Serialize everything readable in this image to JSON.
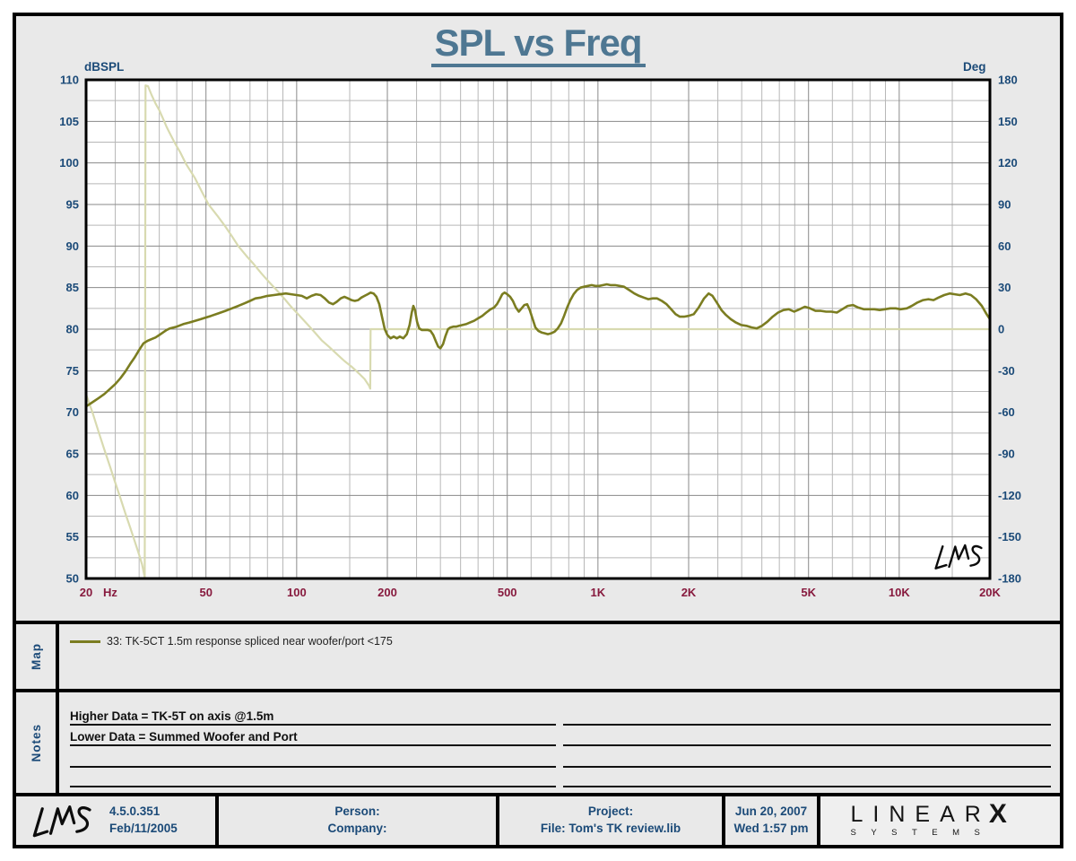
{
  "header": {
    "title": "SPL vs Freq"
  },
  "map": {
    "label": "Map",
    "legend": [
      {
        "swatch_color": "#7b7d21",
        "text": "33: TK-5CT 1.5m response spliced near woofer/port <175"
      }
    ]
  },
  "notes": {
    "label": "Notes",
    "lines": [
      "Higher Data = TK-5T on axis @1.5m",
      "Lower  Data = Summed Woofer and Port",
      "",
      ""
    ]
  },
  "footer": {
    "logo_text": "LMS",
    "version": "4.5.0.351",
    "version_date": "Feb/11/2005",
    "person_label": "Person:",
    "company_label": "Company:",
    "project_label": "Project:",
    "file_label": "File: Tom's TK review.lib",
    "date": "Jun 20, 2007",
    "time": "Wed  1:57 pm",
    "brand": {
      "line1": "LINEAR",
      "x": "X",
      "line2": "SYSTEMS"
    }
  },
  "chart_data": {
    "type": "line",
    "title": "SPL vs Freq",
    "grid": true,
    "annotations": [
      {
        "text": "LMS",
        "type": "signature",
        "position": "bottom-right-of-plot"
      }
    ],
    "x_axis": {
      "scale": "log",
      "min": 20,
      "max": 20000,
      "unit": "Hz",
      "ticks": [
        {
          "f": 20,
          "label": "20"
        },
        {
          "f": 50,
          "label": "50"
        },
        {
          "f": 100,
          "label": "100"
        },
        {
          "f": 200,
          "label": "200"
        },
        {
          "f": 500,
          "label": "500"
        },
        {
          "f": 1000,
          "label": "1K"
        },
        {
          "f": 2000,
          "label": "2K"
        },
        {
          "f": 5000,
          "label": "5K"
        },
        {
          "f": 10000,
          "label": "10K"
        },
        {
          "f": 20000,
          "label": "20K"
        }
      ],
      "minor_multipliers": [
        1.5,
        2,
        2.5,
        3,
        3.5,
        4,
        4.5,
        5,
        6,
        7,
        8,
        9
      ],
      "tick_color": "#871a3e"
    },
    "y_left": {
      "label": "dBSPL",
      "min": 50,
      "max": 110,
      "major_step": 5,
      "minor_step": 2.5,
      "tick_color": "#1b4a78"
    },
    "y_right": {
      "label": "Deg",
      "min": -180,
      "max": 180,
      "major_step": 30,
      "minor_step": 15,
      "tick_color": "#1b4a78"
    },
    "colors": {
      "grid_major": "#8a8a8a",
      "grid_minor": "#b7b7b7",
      "plot_bg": "#ffffff",
      "frame": "#000000"
    },
    "series": [
      {
        "name": "33: TK-5CT 1.5m response spliced near woofer/port <175",
        "axis": "left",
        "color": "#7b7d21",
        "width": 2.6,
        "points": [
          [
            20,
            70.7
          ],
          [
            21,
            71.2
          ],
          [
            22,
            71.7
          ],
          [
            23,
            72.2
          ],
          [
            24,
            72.8
          ],
          [
            25,
            73.4
          ],
          [
            26,
            74.1
          ],
          [
            27,
            74.9
          ],
          [
            28,
            75.8
          ],
          [
            29,
            76.6
          ],
          [
            30,
            77.5
          ],
          [
            31,
            78.3
          ],
          [
            32,
            78.6
          ],
          [
            33,
            78.8
          ],
          [
            34,
            79
          ],
          [
            35,
            79.3
          ],
          [
            36,
            79.6
          ],
          [
            37,
            79.9
          ],
          [
            38,
            80.1
          ],
          [
            40,
            80.3
          ],
          [
            42,
            80.6
          ],
          [
            44,
            80.8
          ],
          [
            46,
            81
          ],
          [
            48,
            81.2
          ],
          [
            50,
            81.4
          ],
          [
            52,
            81.6
          ],
          [
            55,
            81.9
          ],
          [
            58,
            82.2
          ],
          [
            61,
            82.5
          ],
          [
            64,
            82.8
          ],
          [
            67,
            83.1
          ],
          [
            70,
            83.4
          ],
          [
            73,
            83.7
          ],
          [
            76,
            83.8
          ],
          [
            80,
            84
          ],
          [
            84,
            84.1
          ],
          [
            88,
            84.2
          ],
          [
            92,
            84.3
          ],
          [
            96,
            84.2
          ],
          [
            100,
            84.1
          ],
          [
            104,
            84
          ],
          [
            108,
            83.7
          ],
          [
            112,
            84
          ],
          [
            116,
            84.2
          ],
          [
            120,
            84.1
          ],
          [
            124,
            83.7
          ],
          [
            128,
            83.2
          ],
          [
            132,
            83
          ],
          [
            136,
            83.3
          ],
          [
            140,
            83.7
          ],
          [
            144,
            83.9
          ],
          [
            148,
            83.7
          ],
          [
            152,
            83.5
          ],
          [
            156,
            83.4
          ],
          [
            160,
            83.5
          ],
          [
            164,
            83.8
          ],
          [
            168,
            84
          ],
          [
            172,
            84.2
          ],
          [
            176,
            84.4
          ],
          [
            180,
            84.3
          ],
          [
            184,
            83.9
          ],
          [
            188,
            83
          ],
          [
            192,
            81.5
          ],
          [
            196,
            80
          ],
          [
            200,
            79.3
          ],
          [
            205,
            78.9
          ],
          [
            210,
            79.1
          ],
          [
            215,
            78.9
          ],
          [
            220,
            79.1
          ],
          [
            226,
            78.9
          ],
          [
            232,
            79.4
          ],
          [
            237,
            80.5
          ],
          [
            241,
            82
          ],
          [
            244,
            82.8
          ],
          [
            247,
            82.3
          ],
          [
            251,
            80.9
          ],
          [
            255,
            80.1
          ],
          [
            260,
            79.9
          ],
          [
            266,
            79.9
          ],
          [
            272,
            79.9
          ],
          [
            278,
            79.8
          ],
          [
            284,
            79.3
          ],
          [
            290,
            78.5
          ],
          [
            295,
            77.9
          ],
          [
            300,
            77.7
          ],
          [
            306,
            78.2
          ],
          [
            312,
            79.2
          ],
          [
            318,
            80
          ],
          [
            324,
            80.2
          ],
          [
            331,
            80.3
          ],
          [
            338,
            80.3
          ],
          [
            346,
            80.4
          ],
          [
            355,
            80.5
          ],
          [
            365,
            80.6
          ],
          [
            376,
            80.8
          ],
          [
            388,
            81
          ],
          [
            400,
            81.3
          ],
          [
            413,
            81.6
          ],
          [
            426,
            82
          ],
          [
            440,
            82.4
          ],
          [
            452,
            82.6
          ],
          [
            462,
            83
          ],
          [
            472,
            83.6
          ],
          [
            481,
            84.2
          ],
          [
            490,
            84.4
          ],
          [
            500,
            84.2
          ],
          [
            511,
            83.9
          ],
          [
            522,
            83.4
          ],
          [
            534,
            82.6
          ],
          [
            546,
            82.1
          ],
          [
            558,
            82.5
          ],
          [
            570,
            82.9
          ],
          [
            582,
            83
          ],
          [
            594,
            82.3
          ],
          [
            606,
            81.3
          ],
          [
            620,
            80.2
          ],
          [
            634,
            79.8
          ],
          [
            650,
            79.6
          ],
          [
            666,
            79.5
          ],
          [
            682,
            79.4
          ],
          [
            700,
            79.5
          ],
          [
            718,
            79.7
          ],
          [
            736,
            80.1
          ],
          [
            754,
            80.7
          ],
          [
            772,
            81.6
          ],
          [
            790,
            82.6
          ],
          [
            810,
            83.5
          ],
          [
            830,
            84.2
          ],
          [
            852,
            84.7
          ],
          [
            875,
            85
          ],
          [
            900,
            85.1
          ],
          [
            926,
            85.2
          ],
          [
            953,
            85.3
          ],
          [
            980,
            85.2
          ],
          [
            1010,
            85.2
          ],
          [
            1040,
            85.3
          ],
          [
            1070,
            85.4
          ],
          [
            1100,
            85.3
          ],
          [
            1140,
            85.3
          ],
          [
            1180,
            85.2
          ],
          [
            1220,
            85.1
          ],
          [
            1270,
            84.7
          ],
          [
            1320,
            84.3
          ],
          [
            1370,
            84
          ],
          [
            1420,
            83.8
          ],
          [
            1470,
            83.6
          ],
          [
            1520,
            83.7
          ],
          [
            1570,
            83.7
          ],
          [
            1630,
            83.4
          ],
          [
            1690,
            83
          ],
          [
            1750,
            82.4
          ],
          [
            1810,
            81.8
          ],
          [
            1870,
            81.5
          ],
          [
            1930,
            81.5
          ],
          [
            2000,
            81.6
          ],
          [
            2080,
            81.8
          ],
          [
            2160,
            82.6
          ],
          [
            2250,
            83.7
          ],
          [
            2330,
            84.3
          ],
          [
            2400,
            84
          ],
          [
            2480,
            83.2
          ],
          [
            2570,
            82.3
          ],
          [
            2660,
            81.7
          ],
          [
            2760,
            81.2
          ],
          [
            2870,
            80.8
          ],
          [
            2990,
            80.5
          ],
          [
            3110,
            80.4
          ],
          [
            3240,
            80.2
          ],
          [
            3370,
            80.1
          ],
          [
            3500,
            80.4
          ],
          [
            3650,
            80.9
          ],
          [
            3800,
            81.5
          ],
          [
            3960,
            82
          ],
          [
            4130,
            82.3
          ],
          [
            4300,
            82.4
          ],
          [
            4480,
            82.1
          ],
          [
            4670,
            82.4
          ],
          [
            4860,
            82.7
          ],
          [
            5060,
            82.5
          ],
          [
            5270,
            82.2
          ],
          [
            5490,
            82.2
          ],
          [
            5720,
            82.1
          ],
          [
            5960,
            82.1
          ],
          [
            6210,
            82
          ],
          [
            6470,
            82.4
          ],
          [
            6740,
            82.8
          ],
          [
            7020,
            82.9
          ],
          [
            7310,
            82.6
          ],
          [
            7620,
            82.4
          ],
          [
            7940,
            82.4
          ],
          [
            8270,
            82.4
          ],
          [
            8610,
            82.3
          ],
          [
            8970,
            82.4
          ],
          [
            9340,
            82.5
          ],
          [
            9730,
            82.5
          ],
          [
            10100,
            82.4
          ],
          [
            10600,
            82.5
          ],
          [
            11000,
            82.8
          ],
          [
            11500,
            83.2
          ],
          [
            12000,
            83.5
          ],
          [
            12500,
            83.6
          ],
          [
            13000,
            83.5
          ],
          [
            13500,
            83.8
          ],
          [
            14100,
            84.1
          ],
          [
            14700,
            84.3
          ],
          [
            15300,
            84.2
          ],
          [
            15900,
            84.1
          ],
          [
            16600,
            84.3
          ],
          [
            17300,
            84.1
          ],
          [
            18000,
            83.6
          ],
          [
            18800,
            82.8
          ],
          [
            19500,
            81.8
          ],
          [
            20000,
            81.2
          ]
        ]
      },
      {
        "name": "phase",
        "axis": "right",
        "color": "#d8dab0",
        "width": 2.2,
        "points": [
          [
            20,
            -47
          ],
          [
            21,
            -60
          ],
          [
            22,
            -74
          ],
          [
            23,
            -87
          ],
          [
            24,
            -99
          ],
          [
            25,
            -111
          ],
          [
            26,
            -122
          ],
          [
            27,
            -133
          ],
          [
            28,
            -143
          ],
          [
            29,
            -153
          ],
          [
            30,
            -163
          ],
          [
            30.7,
            -170
          ],
          [
            31.3,
            -179
          ],
          [
            31.5,
            176
          ],
          [
            32.1,
            175.5
          ],
          [
            33,
            169
          ],
          [
            34,
            163
          ],
          [
            35,
            158
          ],
          [
            36,
            152
          ],
          [
            37,
            146
          ],
          [
            38,
            141
          ],
          [
            39.5,
            134
          ],
          [
            41,
            128
          ],
          [
            43,
            119
          ],
          [
            46,
            109
          ],
          [
            48.5,
            99
          ],
          [
            51,
            90
          ],
          [
            54.5,
            82
          ],
          [
            58,
            74
          ],
          [
            61,
            67
          ],
          [
            64,
            60
          ],
          [
            68,
            53
          ],
          [
            72,
            47
          ],
          [
            76.5,
            40
          ],
          [
            81,
            34
          ],
          [
            86,
            28
          ],
          [
            91,
            22
          ],
          [
            96,
            16
          ],
          [
            102,
            10
          ],
          [
            108,
            4
          ],
          [
            114.5,
            -2
          ],
          [
            121,
            -8
          ],
          [
            128.5,
            -13
          ],
          [
            136,
            -18
          ],
          [
            144,
            -23
          ],
          [
            152,
            -27
          ],
          [
            161,
            -32
          ],
          [
            168,
            -36
          ],
          [
            174,
            -41
          ],
          [
            175.5,
            -43
          ],
          [
            176,
            0
          ],
          [
            500,
            0
          ],
          [
            1000,
            0
          ],
          [
            5000,
            0
          ],
          [
            10000,
            0
          ],
          [
            20000,
            0
          ]
        ]
      }
    ]
  }
}
